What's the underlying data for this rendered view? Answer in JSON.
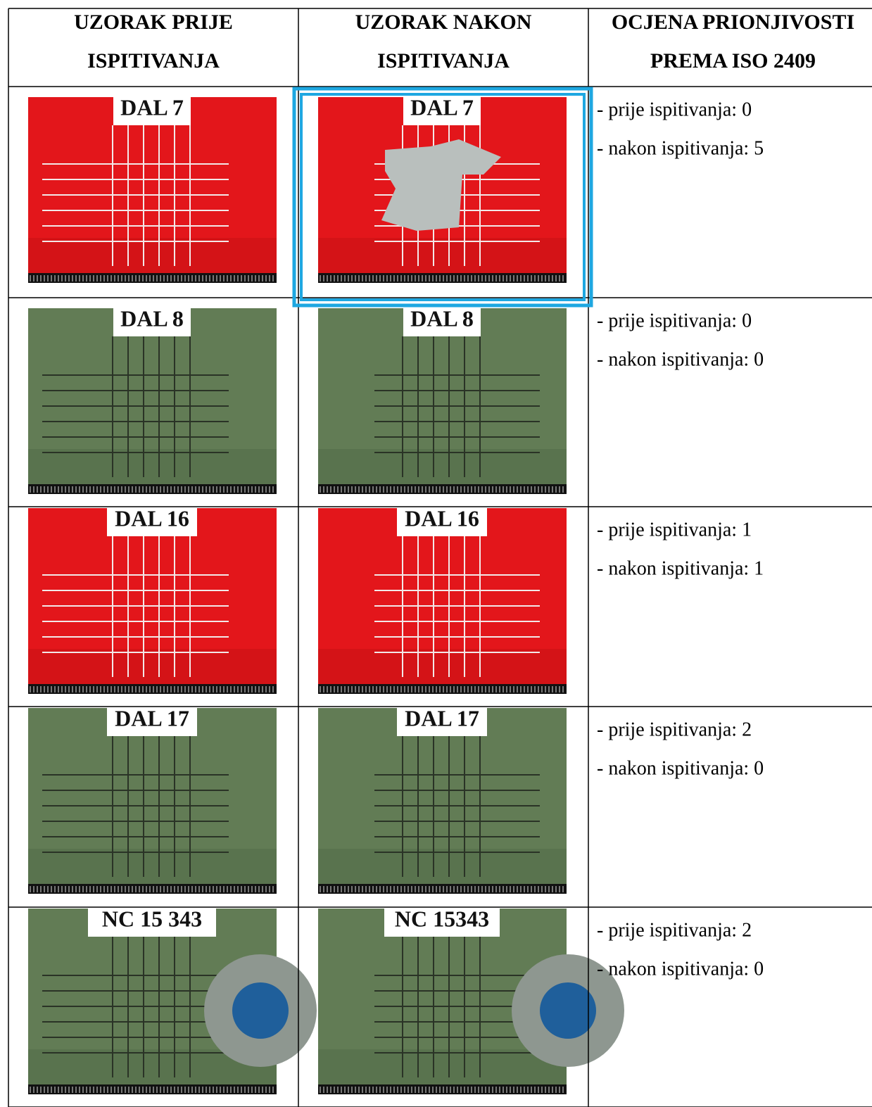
{
  "header": {
    "columns": [
      [
        "UZORAK PRIJE",
        "ISPITIVANJA"
      ],
      [
        "UZORAK NAKON",
        "ISPITIVANJA"
      ],
      [
        "OCJENA PRIONJIVOSTI",
        "PREMA ISO 2409"
      ]
    ]
  },
  "table": {
    "rows": [
      {
        "surface": "red",
        "before_label": "DAL 7",
        "after_label": "DAL 7",
        "ratings": [
          "- prije ispitivanja: 0",
          "- nakon ispitivanja: 5"
        ]
      },
      {
        "surface": "green",
        "before_label": "DAL 8",
        "after_label": "DAL 8",
        "ratings": [
          "- prije ispitivanja: 0",
          "- nakon ispitivanja: 0"
        ]
      },
      {
        "surface": "red",
        "before_label": "DAL 16",
        "after_label": "DAL 16",
        "ratings": [
          "- prije ispitivanja: 1",
          "- nakon ispitivanja: 1"
        ]
      },
      {
        "surface": "green",
        "before_label": "DAL 17",
        "after_label": "DAL 17",
        "ratings": [
          "- prije ispitivanja: 2",
          "- nakon ispitivanja: 0"
        ]
      },
      {
        "surface": "green",
        "before_label": "NC 15 343",
        "after_label": "NC 15343",
        "ratings": [
          "- prije ispitivanja: 2",
          "- nakon ispitivanja: 0"
        ]
      }
    ]
  }
}
